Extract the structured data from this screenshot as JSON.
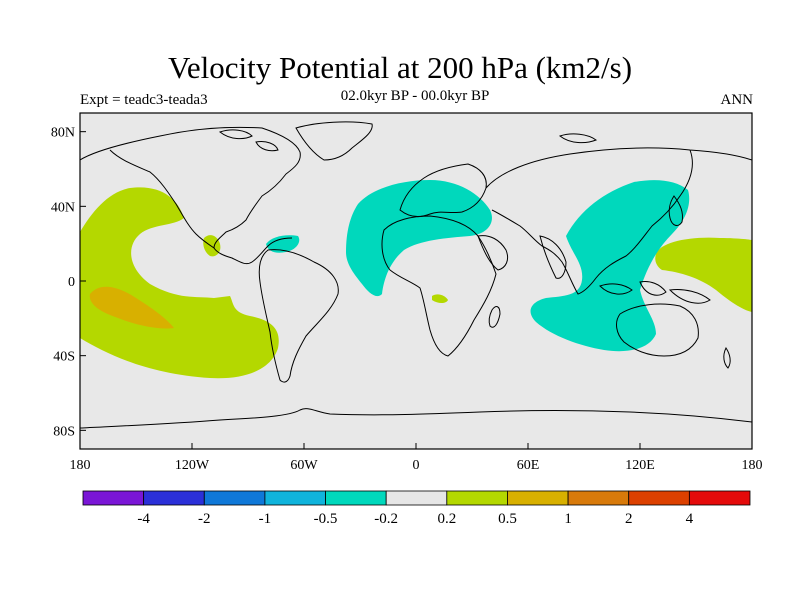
{
  "title": "Velocity Potential at 200 hPa (km2/s)",
  "subtitle": "02.0kyr BP - 00.0kyr BP",
  "left_label": "Expt = teadc3-teada3",
  "right_label": "ANN",
  "map": {
    "lon_range": [
      -180,
      180
    ],
    "lat_range": [
      -90,
      90
    ],
    "lon_ticks": [
      {
        "value": -180,
        "label": "180"
      },
      {
        "value": -120,
        "label": "120W"
      },
      {
        "value": -60,
        "label": "60W"
      },
      {
        "value": 0,
        "label": "0"
      },
      {
        "value": 60,
        "label": "60E"
      },
      {
        "value": 120,
        "label": "120E"
      },
      {
        "value": 180,
        "label": "180"
      }
    ],
    "lat_ticks": [
      {
        "value": 80,
        "label": "80N"
      },
      {
        "value": 40,
        "label": "40N"
      },
      {
        "value": 0,
        "label": "0"
      },
      {
        "value": -40,
        "label": "40S"
      },
      {
        "value": -80,
        "label": "80S"
      }
    ],
    "background_color": "#e8e8e8"
  },
  "colorbar": {
    "colors": [
      "#7a16d6",
      "#2b30d8",
      "#0f78d8",
      "#10b4dc",
      "#00d8bc",
      "#e6e6e6",
      "#b4d800",
      "#d8b000",
      "#d87a0a",
      "#dc4000",
      "#e40a0a"
    ],
    "labels": [
      "-4",
      "-2",
      "-1",
      "-0.5",
      "-0.2",
      "0.2",
      "0.5",
      "1",
      "2",
      "4"
    ]
  }
}
